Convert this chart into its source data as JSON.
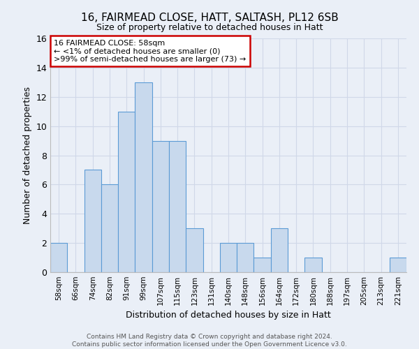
{
  "title_line1": "16, FAIRMEAD CLOSE, HATT, SALTASH, PL12 6SB",
  "title_line2": "Size of property relative to detached houses in Hatt",
  "xlabel": "Distribution of detached houses by size in Hatt",
  "ylabel": "Number of detached properties",
  "bin_labels": [
    "58sqm",
    "66sqm",
    "74sqm",
    "82sqm",
    "91sqm",
    "99sqm",
    "107sqm",
    "115sqm",
    "123sqm",
    "131sqm",
    "140sqm",
    "148sqm",
    "156sqm",
    "164sqm",
    "172sqm",
    "180sqm",
    "188sqm",
    "197sqm",
    "205sqm",
    "213sqm",
    "221sqm"
  ],
  "counts": [
    2,
    0,
    7,
    6,
    11,
    13,
    9,
    9,
    3,
    0,
    2,
    2,
    1,
    3,
    0,
    1,
    0,
    0,
    0,
    0,
    1
  ],
  "bar_color": "#c8d9ed",
  "bar_edge_color": "#5b9bd5",
  "annotation_title": "16 FAIRMEAD CLOSE: 58sqm",
  "annotation_line1": "← <1% of detached houses are smaller (0)",
  "annotation_line2": ">99% of semi-detached houses are larger (73) →",
  "annotation_box_color": "#ffffff",
  "annotation_box_edge_color": "#cc0000",
  "ylim": [
    0,
    16
  ],
  "yticks": [
    0,
    2,
    4,
    6,
    8,
    10,
    12,
    14,
    16
  ],
  "footer_line1": "Contains HM Land Registry data © Crown copyright and database right 2024.",
  "footer_line2": "Contains public sector information licensed under the Open Government Licence v3.0.",
  "grid_color": "#d0d8e8",
  "bg_color": "#eaeff7"
}
